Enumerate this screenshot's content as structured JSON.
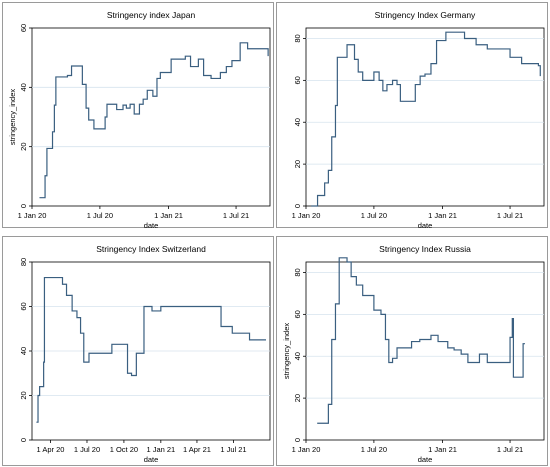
{
  "chart_data": [
    {
      "type": "line",
      "title": "Stringency index Japan",
      "xlabel": "date",
      "ylabel": "stringency_index",
      "xlim": [
        "2020-01-01",
        "2021-09-30"
      ],
      "ylim": [
        0,
        60
      ],
      "xticks": [
        {
          "value": "2020-01-01",
          "label": "1 Jan 20"
        },
        {
          "value": "2020-07-01",
          "label": "1 Jul 20"
        },
        {
          "value": "2021-01-01",
          "label": "1 Jan 21"
        },
        {
          "value": "2021-07-01",
          "label": "1 Jul 21"
        }
      ],
      "yticks": [
        0,
        20,
        40,
        60
      ],
      "grid": true,
      "series": [
        {
          "color": "#3a5f80",
          "x": [
            "2020-01-21",
            "2020-02-01",
            "2020-02-05",
            "2020-02-10",
            "2020-02-20",
            "2020-02-25",
            "2020-03-01",
            "2020-03-05",
            "2020-03-25",
            "2020-04-05",
            "2020-04-16",
            "2020-05-05",
            "2020-05-15",
            "2020-05-25",
            "2020-06-01",
            "2020-06-15",
            "2020-07-01",
            "2020-07-15",
            "2020-07-20",
            "2020-08-15",
            "2020-09-01",
            "2020-09-10",
            "2020-09-20",
            "2020-10-01",
            "2020-10-15",
            "2020-10-25",
            "2020-11-05",
            "2020-11-20",
            "2020-12-01",
            "2020-12-10",
            "2021-01-08",
            "2021-02-01",
            "2021-02-15",
            "2021-03-01",
            "2021-03-22",
            "2021-04-05",
            "2021-04-25",
            "2021-05-20",
            "2021-06-05",
            "2021-06-20",
            "2021-07-12",
            "2021-08-01",
            "2021-09-25"
          ],
          "y": [
            2.8,
            2.8,
            10.2,
            19.4,
            19.4,
            25,
            34,
            43.5,
            43.5,
            44,
            47.2,
            47.2,
            41,
            33,
            29,
            26,
            26,
            30,
            34.3,
            32.5,
            34,
            33,
            34.3,
            31,
            34.3,
            36,
            39,
            37,
            43,
            45,
            49.5,
            49.5,
            50.5,
            47,
            49.5,
            44,
            43,
            45,
            47,
            49,
            55,
            53,
            50.5
          ]
        }
      ]
    },
    {
      "type": "line",
      "title": "Stringency Index Germany",
      "xlabel": "date",
      "ylabel": "",
      "xlim": [
        "2020-01-01",
        "2021-09-30"
      ],
      "ylim": [
        0,
        85
      ],
      "xticks": [
        {
          "value": "2020-01-01",
          "label": "1 Jan 20"
        },
        {
          "value": "2020-07-01",
          "label": "1 Jul 20"
        },
        {
          "value": "2021-01-01",
          "label": "1 Jan 21"
        },
        {
          "value": "2021-07-01",
          "label": "1 Jul 21"
        }
      ],
      "yticks": [
        0,
        20,
        40,
        60,
        80
      ],
      "grid": true,
      "series": [
        {
          "color": "#3a5f80",
          "x": [
            "2020-01-15",
            "2020-02-01",
            "2020-02-10",
            "2020-02-20",
            "2020-03-01",
            "2020-03-10",
            "2020-03-20",
            "2020-03-25",
            "2020-04-20",
            "2020-05-10",
            "2020-05-20",
            "2020-06-01",
            "2020-06-20",
            "2020-07-01",
            "2020-07-15",
            "2020-07-25",
            "2020-08-05",
            "2020-08-20",
            "2020-09-01",
            "2020-09-10",
            "2020-10-01",
            "2020-10-20",
            "2020-11-02",
            "2020-11-15",
            "2020-12-01",
            "2020-12-16",
            "2021-01-10",
            "2021-02-01",
            "2021-03-01",
            "2021-04-01",
            "2021-05-01",
            "2021-06-01",
            "2021-07-01",
            "2021-08-01",
            "2021-09-15",
            "2021-09-20"
          ],
          "y": [
            0,
            5,
            5,
            11,
            17,
            33,
            48,
            71,
            77,
            70,
            64,
            60,
            60,
            64,
            60,
            55,
            58,
            60,
            58,
            50,
            50,
            58,
            62,
            63,
            68,
            79,
            83,
            83,
            80,
            77,
            75,
            75,
            71,
            68,
            67,
            62
          ]
        }
      ]
    },
    {
      "type": "line",
      "title": "Stringency Index Switzerland",
      "xlabel": "date",
      "ylabel": "",
      "xlim": [
        "2020-02-15",
        "2021-09-30"
      ],
      "ylim": [
        0,
        80
      ],
      "xticks": [
        {
          "value": "2020-04-01",
          "label": "1 Apr 20"
        },
        {
          "value": "2020-07-01",
          "label": "1 Jul 20"
        },
        {
          "value": "2020-10-01",
          "label": "1 Oct 20"
        },
        {
          "value": "2021-01-01",
          "label": "1 Jan 21"
        },
        {
          "value": "2021-04-01",
          "label": "1 Apr 21"
        },
        {
          "value": "2021-07-01",
          "label": "1 Jul 21"
        }
      ],
      "yticks": [
        0,
        20,
        40,
        60,
        80
      ],
      "grid": true,
      "series": [
        {
          "color": "#3a5f80",
          "x": [
            "2020-02-26",
            "2020-03-01",
            "2020-03-05",
            "2020-03-10",
            "2020-03-15",
            "2020-03-17",
            "2020-04-20",
            "2020-05-01",
            "2020-05-11",
            "2020-05-25",
            "2020-06-06",
            "2020-06-15",
            "2020-06-23",
            "2020-07-06",
            "2020-08-01",
            "2020-09-01",
            "2020-10-01",
            "2020-10-10",
            "2020-10-20",
            "2020-11-01",
            "2020-11-20",
            "2020-12-10",
            "2021-01-01",
            "2021-03-01",
            "2021-04-19",
            "2021-05-31",
            "2021-06-28",
            "2021-08-10",
            "2021-09-20"
          ],
          "y": [
            8,
            20,
            24,
            24,
            35,
            73,
            73,
            70,
            65,
            58,
            55,
            48,
            35,
            39,
            39,
            43,
            43,
            30,
            29,
            39,
            60,
            58,
            60,
            60,
            60,
            51,
            48,
            45,
            45
          ]
        }
      ]
    },
    {
      "type": "line",
      "title": "Stringency Index Russia",
      "xlabel": "date",
      "ylabel": "stringency_index",
      "xlim": [
        "2020-01-01",
        "2021-09-30"
      ],
      "ylim": [
        0,
        85
      ],
      "xticks": [
        {
          "value": "2020-01-01",
          "label": "1 Jan 20"
        },
        {
          "value": "2020-07-01",
          "label": "1 Jul 20"
        },
        {
          "value": "2021-01-01",
          "label": "1 Jan 21"
        },
        {
          "value": "2021-07-01",
          "label": "1 Jul 21"
        }
      ],
      "yticks": [
        0,
        20,
        40,
        60,
        80
      ],
      "grid": true,
      "series": [
        {
          "color": "#3a5f80",
          "x": [
            "2020-01-31",
            "2020-02-25",
            "2020-03-01",
            "2020-03-10",
            "2020-03-20",
            "2020-03-30",
            "2020-04-20",
            "2020-05-01",
            "2020-05-15",
            "2020-06-01",
            "2020-06-20",
            "2020-07-01",
            "2020-07-20",
            "2020-08-01",
            "2020-08-10",
            "2020-08-20",
            "2020-09-01",
            "2020-09-20",
            "2020-10-10",
            "2020-11-01",
            "2020-11-15",
            "2020-12-01",
            "2020-12-20",
            "2021-01-15",
            "2021-02-01",
            "2021-02-20",
            "2021-03-10",
            "2021-03-25",
            "2021-04-10",
            "2021-05-01",
            "2021-05-20",
            "2021-06-01",
            "2021-06-20",
            "2021-07-01",
            "2021-07-05",
            "2021-07-07",
            "2021-07-10",
            "2021-08-01",
            "2021-08-05",
            "2021-08-10"
          ],
          "y": [
            8,
            8,
            17,
            48,
            65,
            87,
            85,
            78,
            74,
            69,
            69,
            62,
            60,
            48,
            37,
            39,
            44,
            44,
            47,
            48,
            48,
            50,
            47,
            44,
            43,
            41,
            37,
            37,
            41,
            37,
            37,
            37,
            37,
            49,
            49,
            58,
            30,
            30,
            46,
            46
          ]
        }
      ]
    }
  ]
}
